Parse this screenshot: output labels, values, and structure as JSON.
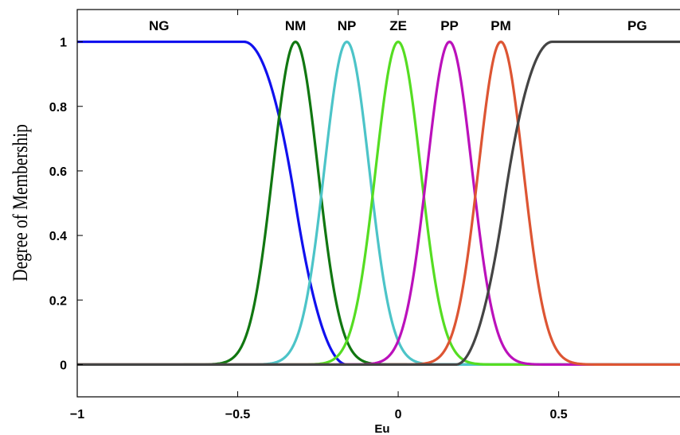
{
  "chart_data": {
    "type": "line",
    "title": "",
    "xlabel": "Eu",
    "ylabel": "Degree of Membership",
    "xlim": [
      -1,
      0.96
    ],
    "ylim": [
      -0.1,
      1.1
    ],
    "xticks": [
      -1,
      -0.5,
      0,
      0.5
    ],
    "xtick_labels": [
      "−1",
      "−0.5",
      "0",
      "0.5"
    ],
    "yticks": [
      0,
      0.2,
      0.4,
      0.6,
      0.8,
      1
    ],
    "ytick_labels": [
      "0",
      "0.2",
      "0.4",
      "0.6",
      "0.8",
      "1"
    ],
    "grid": false,
    "series": [
      {
        "name": "NG",
        "color": "#1111ee",
        "shape": "z",
        "params": [
          -0.48,
          -0.16
        ]
      },
      {
        "name": "NM",
        "color": "#117711",
        "shape": "gauss",
        "params": [
          -0.32,
          0.07
        ]
      },
      {
        "name": "NP",
        "color": "#4cc4c8",
        "shape": "gauss",
        "params": [
          -0.16,
          0.07
        ]
      },
      {
        "name": "ZE",
        "color": "#55dd22",
        "shape": "gauss",
        "params": [
          0,
          0.07
        ]
      },
      {
        "name": "PP",
        "color": "#bb11bb",
        "shape": "gauss",
        "params": [
          0.16,
          0.07
        ]
      },
      {
        "name": "PM",
        "color": "#dd5533",
        "shape": "gauss",
        "params": [
          0.32,
          0.07
        ]
      },
      {
        "name": "PG",
        "color": "#444444",
        "shape": "s",
        "params": [
          0.18,
          0.48
        ]
      }
    ],
    "label_positions": [
      -0.745,
      -0.32,
      -0.16,
      0,
      0.16,
      0.32,
      0.745
    ]
  }
}
